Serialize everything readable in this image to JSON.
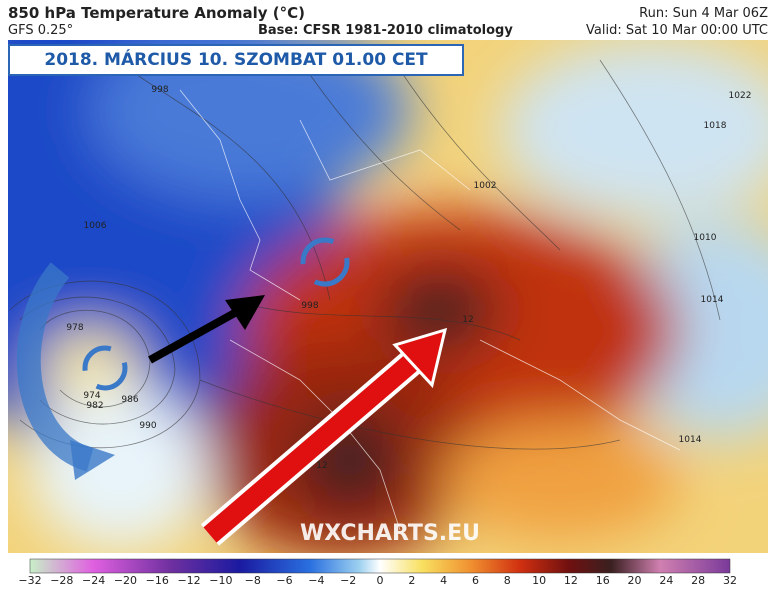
{
  "header": {
    "title": "850 hPa Temperature Anomaly (°C)",
    "model": "GFS 0.25°",
    "base": "Base: CFSR 1981-2010 climatology",
    "run": "Run: Sun 4 Mar 06Z",
    "valid": "Valid: Sat 10 Mar 00:00 UTC"
  },
  "banner": "2018. MÁRCIUS 10. SZOMBAT 01.00 CET",
  "watermark": "WXCHARTS.EU",
  "map": {
    "isobar_labels": [
      "998",
      "1002",
      "1006",
      "1010",
      "1014",
      "1018",
      "1022",
      "998",
      "978",
      "982",
      "986",
      "990",
      "974",
      "1014",
      "12",
      "12"
    ]
  },
  "colorbar": {
    "ticks": [
      "−32",
      "−28",
      "−24",
      "−20",
      "−16",
      "−12",
      "−10",
      "−8",
      "−6",
      "−4",
      "−2",
      "0",
      "2",
      "4",
      "6",
      "8",
      "10",
      "12",
      "16",
      "20",
      "24",
      "28",
      "32"
    ]
  }
}
